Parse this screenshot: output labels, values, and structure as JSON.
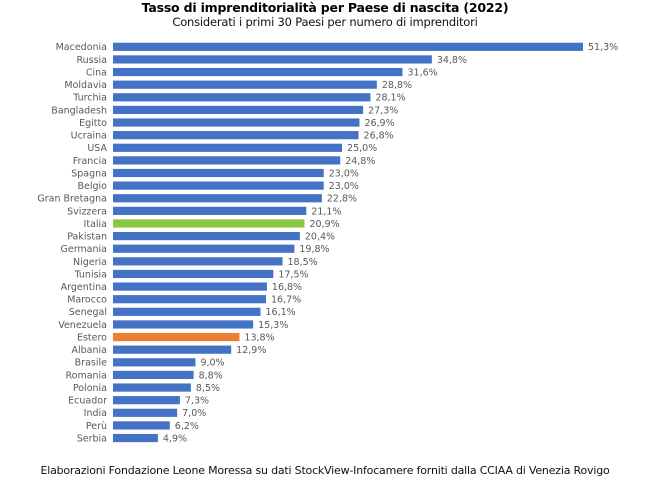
{
  "chart_data": {
    "type": "bar",
    "orientation": "horizontal",
    "title": "Tasso di imprenditorialità per Paese di nascita (2022)",
    "subtitle": "Considerati i primi 30 Paesi per numero di imprenditori",
    "xlabel": "",
    "ylabel": "",
    "xlim": [
      0,
      51.3
    ],
    "grid": false,
    "legend": "none",
    "value_suffix": "%",
    "decimal_separator": ",",
    "default_color": "#4472C4",
    "highlight_colors": {
      "Italia": "#8CC63F",
      "Estero": "#ED7D31"
    },
    "categories": [
      "Macedonia",
      "Russia",
      "Cina",
      "Moldavia",
      "Turchia",
      "Bangladesh",
      "Egitto",
      "Ucraina",
      "USA",
      "Francia",
      "Spagna",
      "Belgio",
      "Gran Bretagna",
      "Svizzera",
      "Italia",
      "Pakistan",
      "Germania",
      "Nigeria",
      "Tunisia",
      "Argentina",
      "Marocco",
      "Senegal",
      "Venezuela",
      "Estero",
      "Albania",
      "Brasile",
      "Romania",
      "Polonia",
      "Ecuador",
      "India",
      "Perù",
      "Serbia"
    ],
    "values": [
      51.3,
      34.8,
      31.6,
      28.8,
      28.1,
      27.3,
      26.9,
      26.8,
      25.0,
      24.8,
      23.0,
      23.0,
      22.8,
      21.1,
      20.9,
      20.4,
      19.8,
      18.5,
      17.5,
      16.8,
      16.7,
      16.1,
      15.3,
      13.8,
      12.9,
      9.0,
      8.8,
      8.5,
      7.3,
      7.0,
      6.2,
      4.9
    ]
  },
  "footer": {
    "source": "Elaborazioni Fondazione Leone Moressa su dati StockView-Infocamere forniti dalla CCIAA di Venezia Rovigo"
  }
}
